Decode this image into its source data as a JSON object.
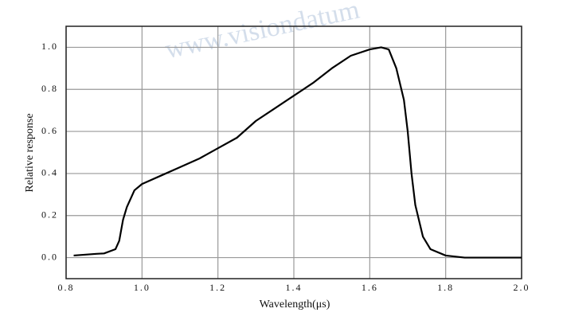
{
  "chart_data": {
    "type": "line",
    "watermark": "www.visiondatum",
    "x_label": "Wavelength(μs)",
    "y_label": "Relative response",
    "x": [
      0.82,
      0.88,
      0.9,
      0.93,
      0.94,
      0.95,
      0.96,
      0.98,
      1.0,
      1.05,
      1.1,
      1.15,
      1.2,
      1.25,
      1.3,
      1.35,
      1.4,
      1.45,
      1.5,
      1.55,
      1.6,
      1.63,
      1.65,
      1.67,
      1.69,
      1.7,
      1.71,
      1.72,
      1.74,
      1.76,
      1.8,
      1.85,
      1.9,
      2.0
    ],
    "series": [
      {
        "color": "#000000",
        "values": [
          0.01,
          0.018,
          0.02,
          0.04,
          0.08,
          0.18,
          0.24,
          0.32,
          0.35,
          0.39,
          0.43,
          0.47,
          0.52,
          0.57,
          0.65,
          0.71,
          0.77,
          0.83,
          0.9,
          0.96,
          0.99,
          1.0,
          0.99,
          0.9,
          0.75,
          0.6,
          0.4,
          0.25,
          0.1,
          0.04,
          0.01,
          0.0,
          0.0,
          0.0
        ]
      }
    ],
    "xlim": [
      0.8,
      2.0
    ],
    "ylim": [
      -0.1,
      1.1
    ],
    "xticks": [
      0.8,
      {
        "value": 1,
        "label": "1.0"
      },
      1.2,
      1.4,
      1.6,
      1.8,
      {
        "value": 2,
        "label": "2.0"
      }
    ],
    "yticks": [
      {
        "value": 0,
        "label": "0.0"
      },
      0.2,
      0.4,
      0.6,
      0.8,
      {
        "value": 1,
        "label": "1.0"
      }
    ],
    "grid": true
  }
}
